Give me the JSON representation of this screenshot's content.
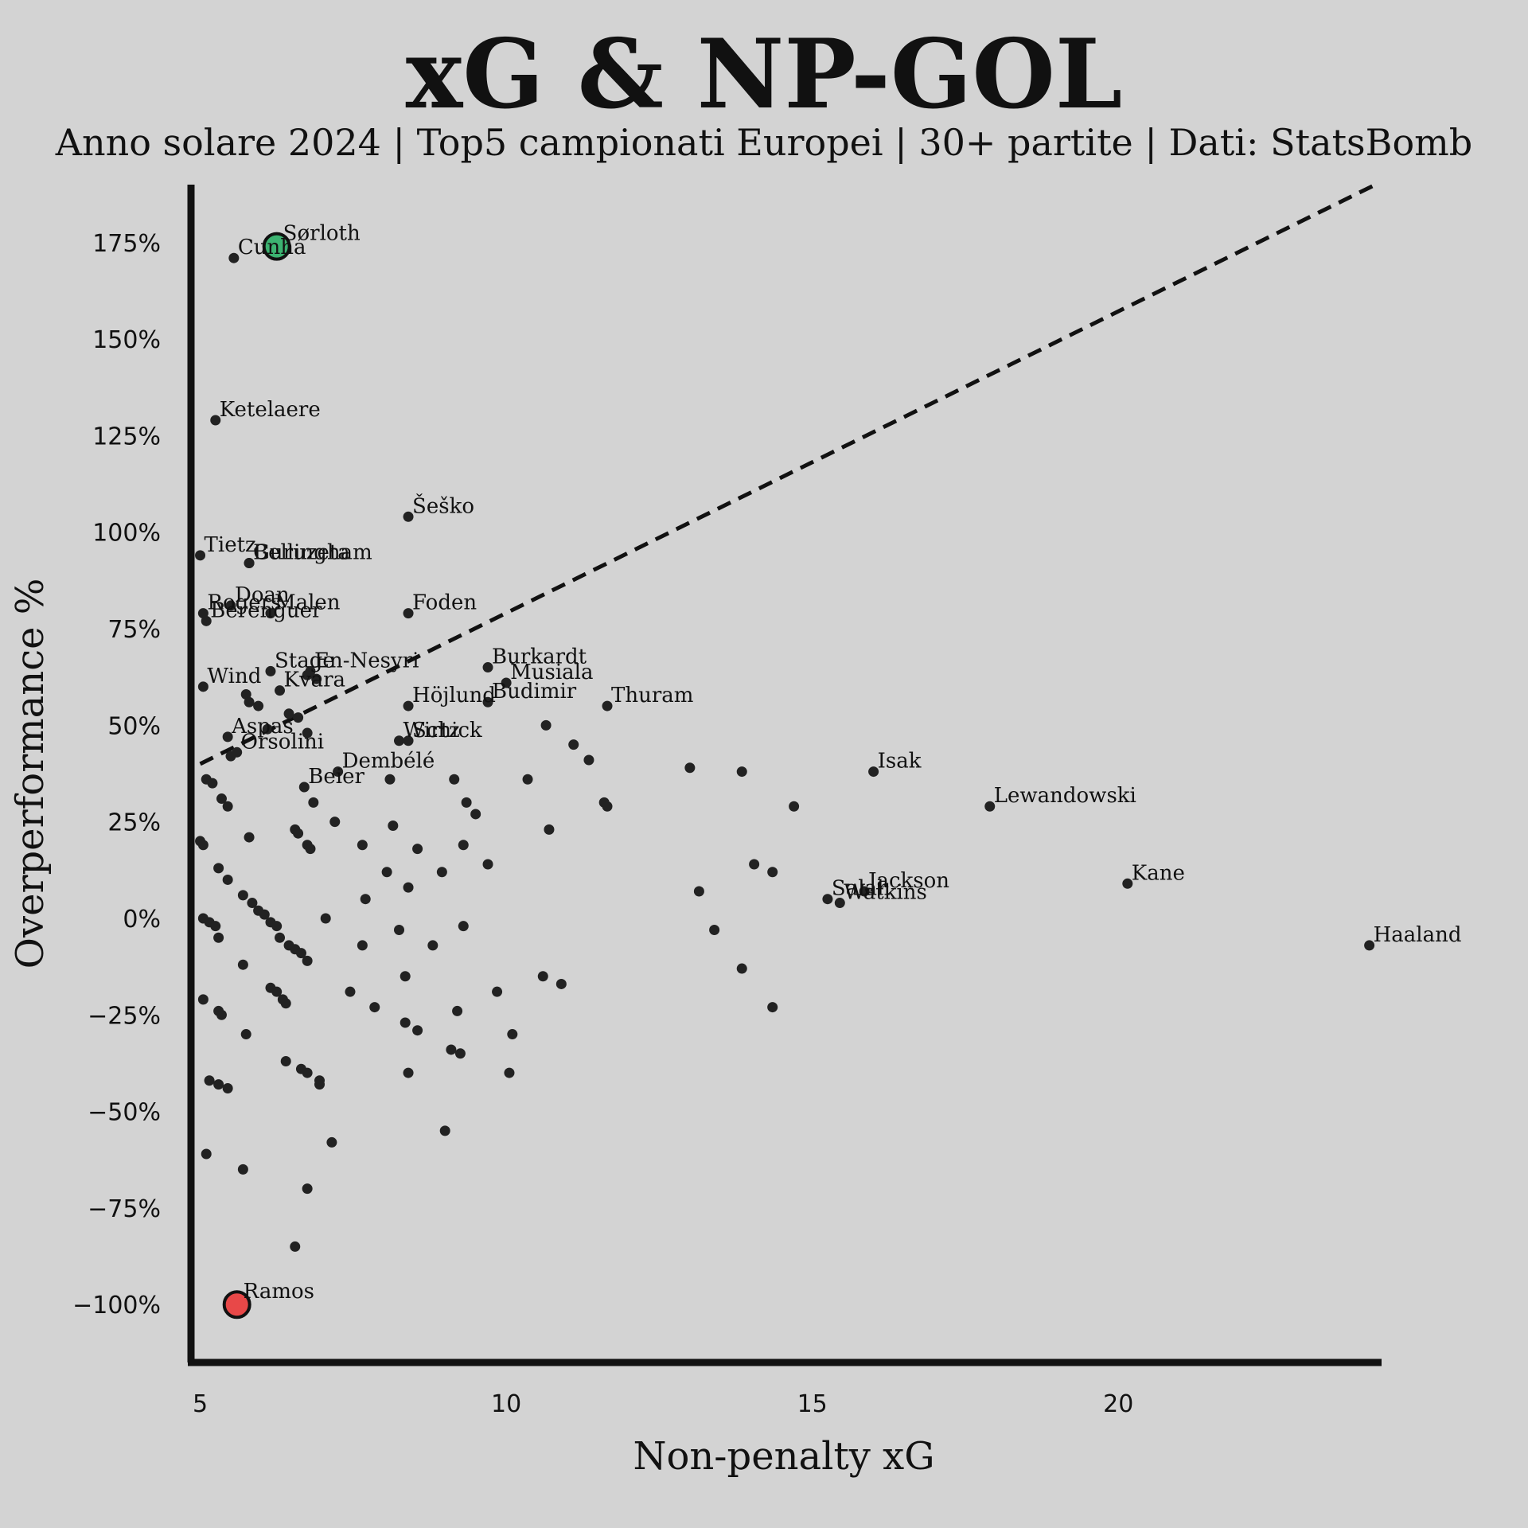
{
  "title": "xG & NP-GOL",
  "subtitle": "Anno solare 2024 | Top5 campionati Europei | 30+ partite | Dati: StatsBomb",
  "chart_data": {
    "type": "scatter",
    "xlabel": "Non-penalty xG",
    "ylabel": "Overperformance %",
    "xlim": [
      4.85,
      24.3
    ],
    "ylim": [
      -115,
      190
    ],
    "xticks": [
      5,
      10,
      15,
      20
    ],
    "yticks": [
      -100,
      -75,
      -50,
      -25,
      0,
      25,
      50,
      75,
      100,
      125,
      150,
      175
    ],
    "ytick_suffix": "%",
    "reference_line": {
      "style": "dashed",
      "from": [
        5,
        40
      ],
      "to": [
        24.2,
        190
      ]
    },
    "highlight_colors": {
      "positive": "#3cb371",
      "negative": "#e84848"
    },
    "labeled_points": [
      {
        "name": "Sørloth",
        "x": 6.25,
        "y": 174,
        "highlight": "positive"
      },
      {
        "name": "Ramos",
        "x": 5.6,
        "y": -100,
        "highlight": "negative"
      },
      {
        "name": "Cunha",
        "x": 5.55,
        "y": 171
      },
      {
        "name": "Ketelaere",
        "x": 5.25,
        "y": 129
      },
      {
        "name": "Šeško",
        "x": 8.4,
        "y": 104
      },
      {
        "name": "Guruzeta",
        "x": 5.8,
        "y": 92
      },
      {
        "name": "Tietz",
        "x": 5.0,
        "y": 94
      },
      {
        "name": "Bellingham",
        "x": 5.8,
        "y": 92
      },
      {
        "name": "Rogers",
        "x": 5.05,
        "y": 79
      },
      {
        "name": "Doan",
        "x": 5.5,
        "y": 81
      },
      {
        "name": "Foden",
        "x": 8.4,
        "y": 79
      },
      {
        "name": "Berenguer",
        "x": 5.1,
        "y": 77
      },
      {
        "name": "Malen",
        "x": 6.15,
        "y": 79
      },
      {
        "name": "En-Nesyri",
        "x": 6.8,
        "y": 64
      },
      {
        "name": "Burkardt",
        "x": 9.7,
        "y": 65
      },
      {
        "name": "Wind",
        "x": 5.05,
        "y": 60
      },
      {
        "name": "Stage",
        "x": 6.15,
        "y": 64
      },
      {
        "name": "Höjlund",
        "x": 8.4,
        "y": 55
      },
      {
        "name": "Musiala",
        "x": 10.0,
        "y": 61
      },
      {
        "name": "Thuram",
        "x": 11.65,
        "y": 55
      },
      {
        "name": "Kvara",
        "x": 6.3,
        "y": 59
      },
      {
        "name": "Budimir",
        "x": 9.7,
        "y": 56
      },
      {
        "name": "Aspas",
        "x": 5.45,
        "y": 47
      },
      {
        "name": "Wirtz",
        "x": 8.25,
        "y": 46
      },
      {
        "name": "Schick",
        "x": 8.4,
        "y": 46
      },
      {
        "name": "Orsolini",
        "x": 5.6,
        "y": 43
      },
      {
        "name": "Dembélé",
        "x": 7.25,
        "y": 38
      },
      {
        "name": "Beier",
        "x": 6.7,
        "y": 34
      },
      {
        "name": "Isak",
        "x": 16.0,
        "y": 38
      },
      {
        "name": "Lewandowski",
        "x": 17.9,
        "y": 29
      },
      {
        "name": "Salah",
        "x": 15.25,
        "y": 5
      },
      {
        "name": "Jackson",
        "x": 15.85,
        "y": 7
      },
      {
        "name": "Watkins",
        "x": 15.45,
        "y": 4
      },
      {
        "name": "Kane",
        "x": 20.15,
        "y": 9
      },
      {
        "name": "Haaland",
        "x": 24.1,
        "y": -7
      }
    ],
    "other_points": [
      [
        5.1,
        36
      ],
      [
        5.2,
        35
      ],
      [
        5.35,
        31
      ],
      [
        5.45,
        29
      ],
      [
        5.8,
        21
      ],
      [
        5.0,
        20
      ],
      [
        5.05,
        19
      ],
      [
        5.3,
        13
      ],
      [
        5.45,
        10
      ],
      [
        5.05,
        0
      ],
      [
        5.15,
        -1
      ],
      [
        5.25,
        -2
      ],
      [
        5.3,
        -5
      ],
      [
        5.7,
        6
      ],
      [
        5.85,
        4
      ],
      [
        5.95,
        2
      ],
      [
        6.05,
        1
      ],
      [
        6.15,
        -1
      ],
      [
        6.25,
        -2
      ],
      [
        6.3,
        -5
      ],
      [
        6.45,
        -7
      ],
      [
        6.55,
        -8
      ],
      [
        6.65,
        -9
      ],
      [
        6.75,
        -11
      ],
      [
        5.05,
        -21
      ],
      [
        5.3,
        -24
      ],
      [
        5.35,
        -25
      ],
      [
        5.7,
        -12
      ],
      [
        5.75,
        -30
      ],
      [
        6.15,
        -18
      ],
      [
        6.25,
        -19
      ],
      [
        6.35,
        -21
      ],
      [
        6.4,
        -22
      ],
      [
        6.4,
        -37
      ],
      [
        6.65,
        -39
      ],
      [
        6.75,
        -40
      ],
      [
        6.95,
        -42
      ],
      [
        6.95,
        -43
      ],
      [
        5.15,
        -42
      ],
      [
        5.3,
        -43
      ],
      [
        5.45,
        -44
      ],
      [
        5.1,
        -61
      ],
      [
        5.7,
        -65
      ],
      [
        6.75,
        -70
      ],
      [
        6.55,
        -85
      ],
      [
        7.15,
        -58
      ],
      [
        6.55,
        23
      ],
      [
        6.6,
        22
      ],
      [
        6.75,
        19
      ],
      [
        6.8,
        18
      ],
      [
        6.85,
        30
      ],
      [
        7.2,
        25
      ],
      [
        7.65,
        19
      ],
      [
        7.05,
        0
      ],
      [
        7.7,
        5
      ],
      [
        7.65,
        -7
      ],
      [
        7.45,
        -19
      ],
      [
        7.85,
        -23
      ],
      [
        8.05,
        12
      ],
      [
        8.15,
        24
      ],
      [
        8.25,
        -3
      ],
      [
        8.35,
        -15
      ],
      [
        8.4,
        8
      ],
      [
        8.55,
        18
      ],
      [
        8.55,
        -29
      ],
      [
        8.8,
        -7
      ],
      [
        8.95,
        12
      ],
      [
        9.15,
        36
      ],
      [
        8.1,
        36
      ],
      [
        8.35,
        -27
      ],
      [
        8.4,
        -40
      ],
      [
        9.1,
        -34
      ],
      [
        9.25,
        -35
      ],
      [
        9.2,
        -24
      ],
      [
        9.3,
        -2
      ],
      [
        9.3,
        19
      ],
      [
        9.35,
        30
      ],
      [
        9.5,
        27
      ],
      [
        9.7,
        14
      ],
      [
        9.85,
        -19
      ],
      [
        10.05,
        -40
      ],
      [
        10.1,
        -30
      ],
      [
        10.35,
        36
      ],
      [
        10.6,
        -15
      ],
      [
        10.7,
        23
      ],
      [
        10.9,
        -17
      ],
      [
        9.0,
        -55
      ],
      [
        11.1,
        45
      ],
      [
        11.35,
        41
      ],
      [
        11.6,
        30
      ],
      [
        11.65,
        29
      ],
      [
        10.65,
        50
      ],
      [
        13.0,
        39
      ],
      [
        13.85,
        38
      ],
      [
        14.7,
        29
      ],
      [
        14.05,
        14
      ],
      [
        14.35,
        12
      ],
      [
        13.15,
        7
      ],
      [
        13.4,
        -3
      ],
      [
        13.85,
        -13
      ],
      [
        14.35,
        -23
      ],
      [
        5.95,
        55
      ],
      [
        6.1,
        49
      ],
      [
        6.45,
        53
      ],
      [
        6.6,
        52
      ],
      [
        6.75,
        48
      ],
      [
        6.9,
        62
      ],
      [
        6.75,
        63
      ],
      [
        5.75,
        58
      ],
      [
        5.8,
        56
      ],
      [
        5.5,
        42
      ]
    ]
  }
}
